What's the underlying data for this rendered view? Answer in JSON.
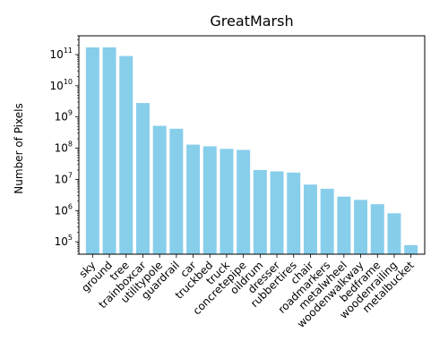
{
  "chart_data": {
    "type": "bar",
    "title": "GreatMarsh",
    "xlabel": "",
    "ylabel": "Number of Pixels",
    "yscale": "log",
    "ylim": [
      40000,
      400000000000
    ],
    "grid": false,
    "bar_color": "#87ceeb",
    "categories": [
      "sky",
      "ground",
      "tree",
      "trainboxcar",
      "utilitypole",
      "guardrail",
      "car",
      "truckbed",
      "truck",
      "concretepipe",
      "oildrum",
      "dresser",
      "rubbertires",
      "chair",
      "roadmarkers",
      "metalwheel",
      "woodenwalkway",
      "bedframe",
      "woodenrailing",
      "metalbucket"
    ],
    "values": [
      170000000000,
      170000000000,
      90000000000,
      2800000000,
      520000000,
      420000000,
      130000000,
      115000000,
      95000000,
      88000000,
      20000000,
      18000000,
      16500000,
      6800000,
      5000000,
      2800000,
      2200000,
      1600000,
      820000,
      78000
    ],
    "yticks": [
      {
        "base": "10",
        "exp": "5",
        "value": 100000
      },
      {
        "base": "10",
        "exp": "6",
        "value": 1000000
      },
      {
        "base": "10",
        "exp": "7",
        "value": 10000000
      },
      {
        "base": "10",
        "exp": "8",
        "value": 100000000
      },
      {
        "base": "10",
        "exp": "9",
        "value": 1000000000
      },
      {
        "base": "10",
        "exp": "10",
        "value": 10000000000
      },
      {
        "base": "10",
        "exp": "11",
        "value": 100000000000
      }
    ]
  }
}
